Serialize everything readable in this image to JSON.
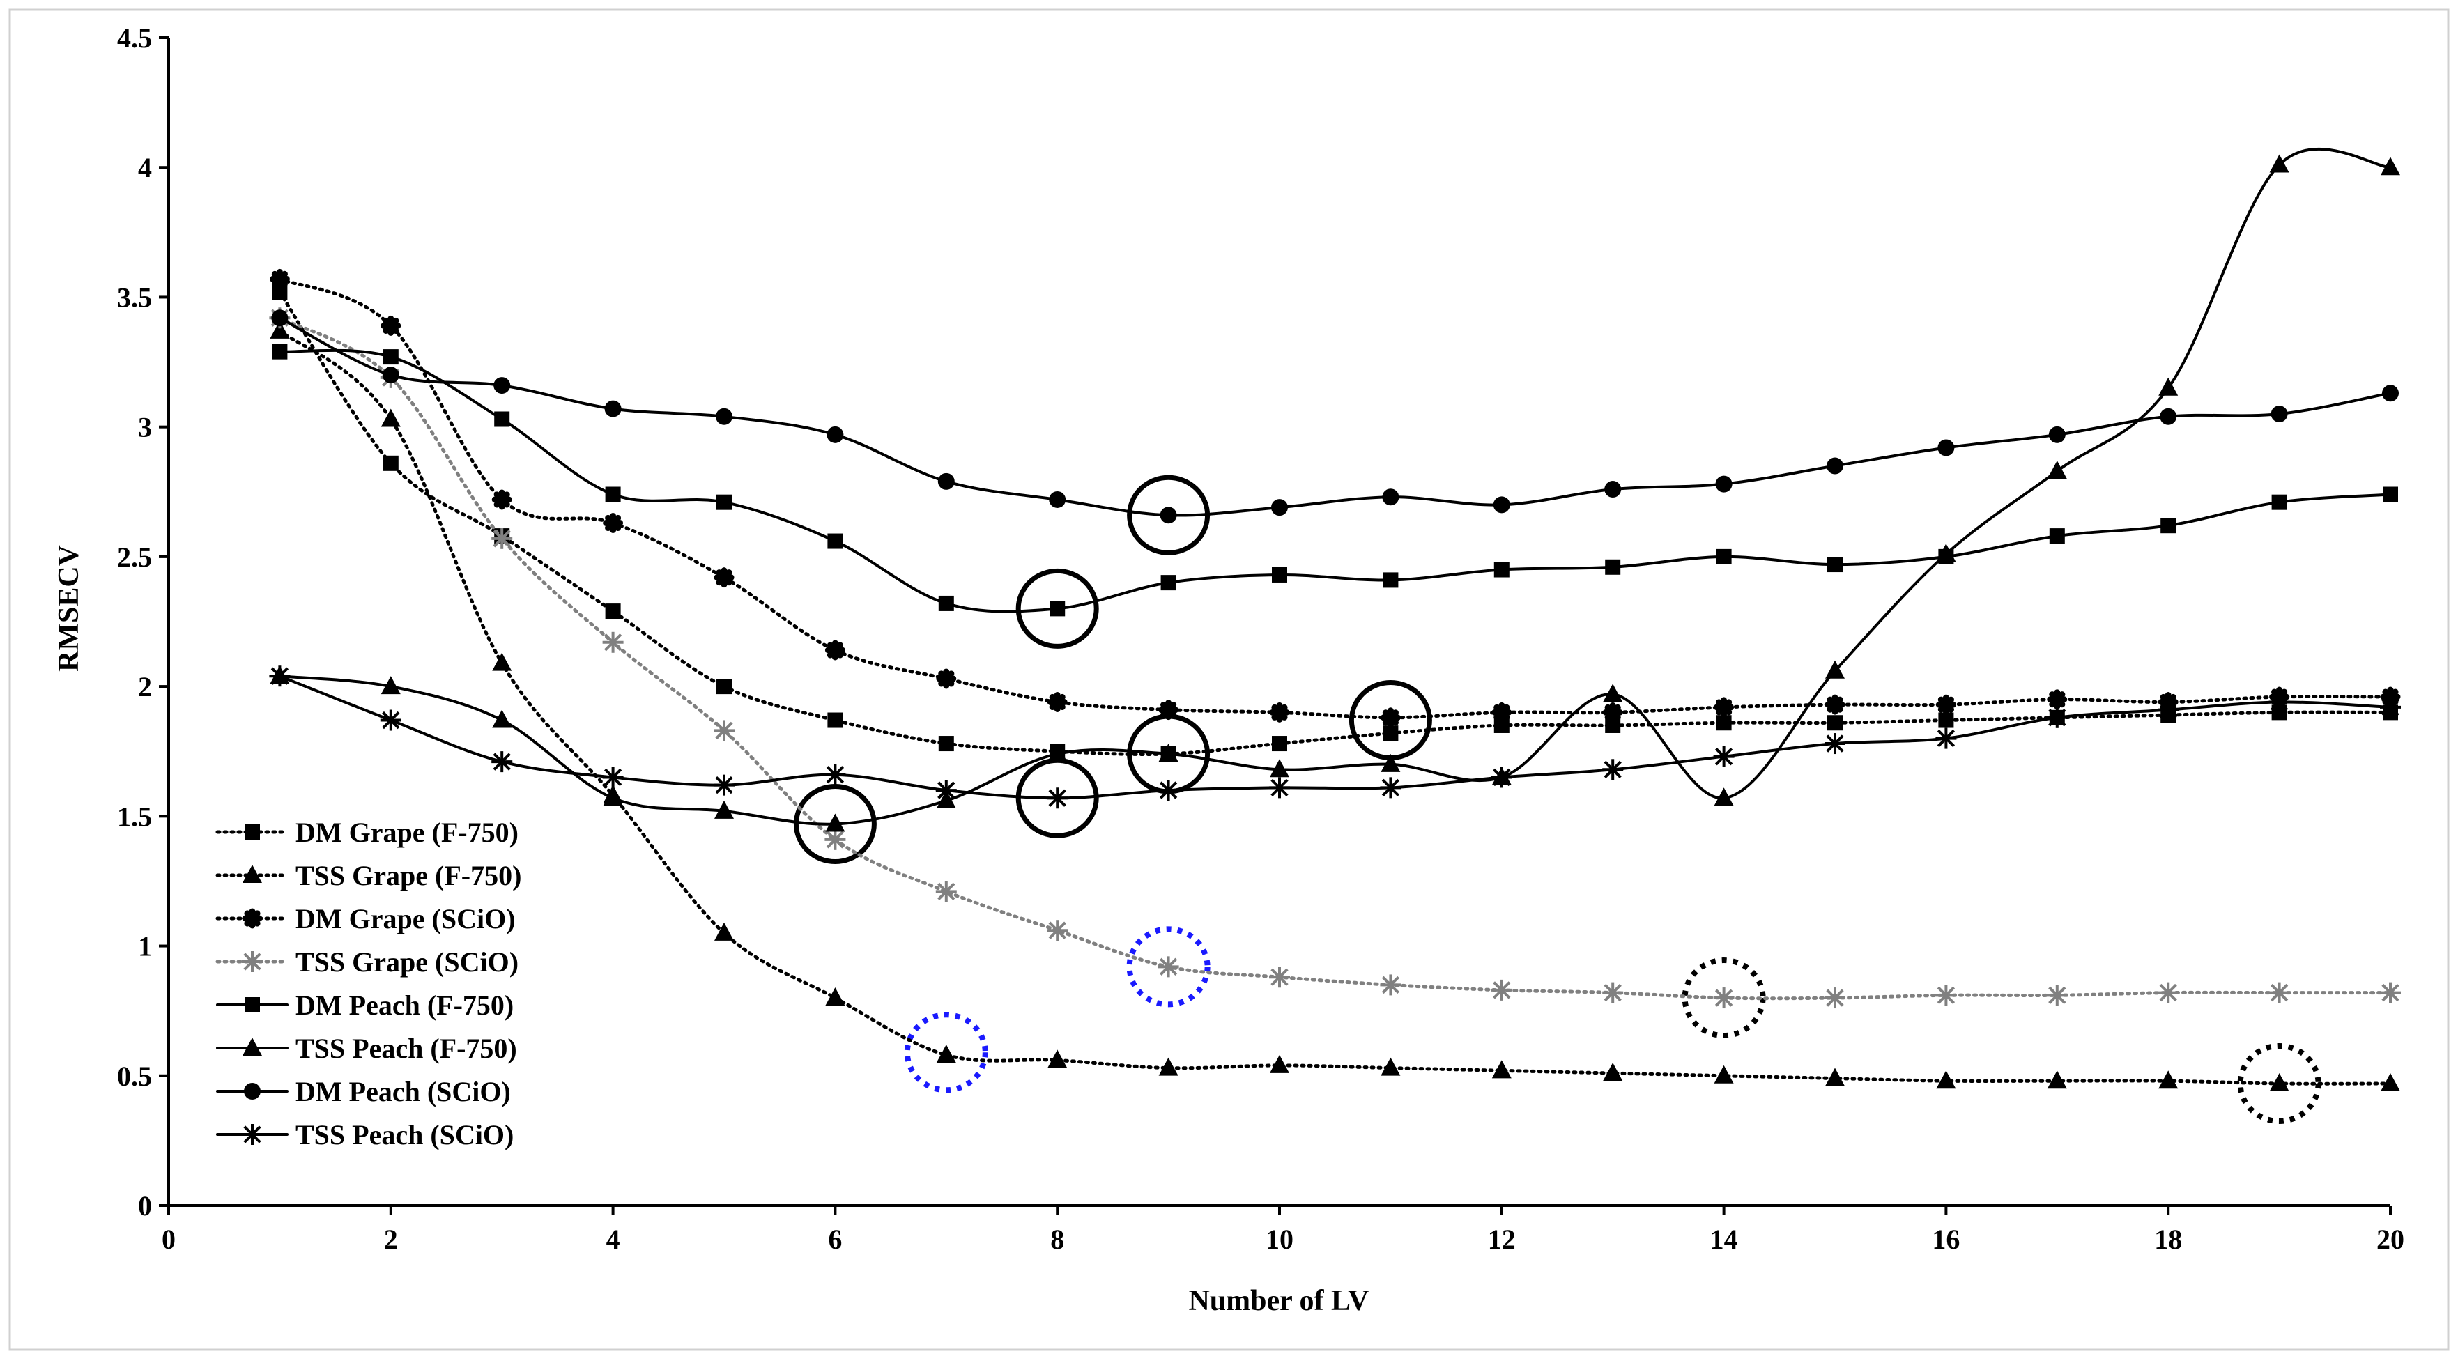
{
  "chart_data": {
    "type": "line",
    "title": "",
    "xlabel": "Number  of LV",
    "ylabel": "RMSECV",
    "xlim": [
      0,
      20
    ],
    "ylim": [
      0,
      4.5
    ],
    "xticks": [
      0,
      2,
      4,
      6,
      8,
      10,
      12,
      14,
      16,
      18,
      20
    ],
    "yticks": [
      0,
      0.5,
      1,
      1.5,
      2,
      2.5,
      3,
      3.5,
      4,
      4.5
    ],
    "xtick_labels": [
      "0",
      "2",
      "4",
      "6",
      "8",
      "10",
      "12",
      "14",
      "16",
      "18",
      "20"
    ],
    "ytick_labels": [
      "0",
      "0.5",
      "1",
      "1.5",
      "2",
      "2.5",
      "3",
      "3.5",
      "4",
      "4.5"
    ],
    "grid": false,
    "legend_position": "bottom-left",
    "x": [
      1,
      2,
      3,
      4,
      5,
      6,
      7,
      8,
      9,
      10,
      11,
      12,
      13,
      14,
      15,
      16,
      17,
      18,
      19,
      20
    ],
    "series": [
      {
        "name": "DM Grape (F-750)",
        "line": "dotted",
        "marker": "square",
        "color": "#000000",
        "values": [
          3.52,
          2.86,
          2.58,
          2.29,
          2.0,
          1.87,
          1.78,
          1.75,
          1.74,
          1.78,
          1.82,
          1.85,
          1.85,
          1.86,
          1.86,
          1.87,
          1.88,
          1.89,
          1.9,
          1.9
        ]
      },
      {
        "name": "TSS Grape (F-750)",
        "line": "dotted",
        "marker": "triangle",
        "color": "#000000",
        "values": [
          3.37,
          3.03,
          2.09,
          1.58,
          1.05,
          0.8,
          0.58,
          0.56,
          0.53,
          0.54,
          0.53,
          0.52,
          0.51,
          0.5,
          0.49,
          0.48,
          0.48,
          0.48,
          0.47,
          0.47
        ]
      },
      {
        "name": "DM Grape (SCiO)",
        "line": "dotted",
        "marker": "star-dot",
        "color": "#000000",
        "values": [
          3.57,
          3.39,
          2.72,
          2.63,
          2.42,
          2.14,
          2.03,
          1.94,
          1.91,
          1.9,
          1.88,
          1.9,
          1.9,
          1.92,
          1.93,
          1.93,
          1.95,
          1.94,
          1.96,
          1.96
        ]
      },
      {
        "name": "TSS Grape (SCiO)",
        "line": "dotted",
        "marker": "asterisk-gray",
        "color": "#808080",
        "values": [
          3.42,
          3.19,
          2.57,
          2.17,
          1.83,
          1.41,
          1.21,
          1.06,
          0.92,
          0.88,
          0.85,
          0.83,
          0.82,
          0.8,
          0.8,
          0.81,
          0.81,
          0.82,
          0.82,
          0.82
        ]
      },
      {
        "name": "DM Peach (F-750)",
        "line": "solid",
        "marker": "square",
        "color": "#000000",
        "values": [
          3.29,
          3.27,
          3.03,
          2.74,
          2.71,
          2.56,
          2.32,
          2.3,
          2.4,
          2.43,
          2.41,
          2.45,
          2.46,
          2.5,
          2.47,
          2.5,
          2.58,
          2.62,
          2.71,
          2.74
        ]
      },
      {
        "name": "TSS Peach (F-750)",
        "line": "solid",
        "marker": "triangle",
        "color": "#000000",
        "values": [
          2.04,
          2.0,
          1.87,
          1.57,
          1.52,
          1.47,
          1.56,
          1.74,
          1.74,
          1.68,
          1.7,
          1.65,
          1.97,
          1.57,
          2.06,
          2.51,
          2.83,
          3.15,
          4.01,
          4.0
        ]
      },
      {
        "name": "DM Peach (SCiO)",
        "line": "solid",
        "marker": "circle",
        "color": "#000000",
        "values": [
          3.42,
          3.2,
          3.16,
          3.07,
          3.04,
          2.97,
          2.79,
          2.72,
          2.66,
          2.69,
          2.73,
          2.7,
          2.76,
          2.78,
          2.85,
          2.92,
          2.97,
          3.04,
          3.05,
          3.13
        ]
      },
      {
        "name": "TSS Peach (SCiO)",
        "line": "solid",
        "marker": "asterisk",
        "color": "#000000",
        "values": [
          2.04,
          1.87,
          1.71,
          1.65,
          1.62,
          1.66,
          1.6,
          1.57,
          1.6,
          1.61,
          1.61,
          1.65,
          1.68,
          1.73,
          1.78,
          1.8,
          1.88,
          1.91,
          1.94,
          1.92
        ]
      }
    ],
    "annotations": [
      {
        "type": "circle",
        "style": "solid",
        "color": "#000000",
        "x": 9,
        "y": 2.66
      },
      {
        "type": "circle",
        "style": "solid",
        "color": "#000000",
        "x": 8,
        "y": 2.3
      },
      {
        "type": "circle",
        "style": "solid",
        "color": "#000000",
        "x": 11,
        "y": 1.87
      },
      {
        "type": "circle",
        "style": "solid",
        "color": "#000000",
        "x": 9,
        "y": 1.74
      },
      {
        "type": "circle",
        "style": "solid",
        "color": "#000000",
        "x": 8,
        "y": 1.57
      },
      {
        "type": "circle",
        "style": "solid",
        "color": "#000000",
        "x": 6,
        "y": 1.47
      },
      {
        "type": "circle",
        "style": "dotted",
        "color": "#1a1aff",
        "x": 7,
        "y": 0.59
      },
      {
        "type": "circle",
        "style": "dotted",
        "color": "#1a1aff",
        "x": 9,
        "y": 0.92
      },
      {
        "type": "circle",
        "style": "dotted",
        "color": "#000000",
        "x": 14,
        "y": 0.8
      },
      {
        "type": "circle",
        "style": "dotted",
        "color": "#000000",
        "x": 19,
        "y": 0.47
      }
    ]
  }
}
